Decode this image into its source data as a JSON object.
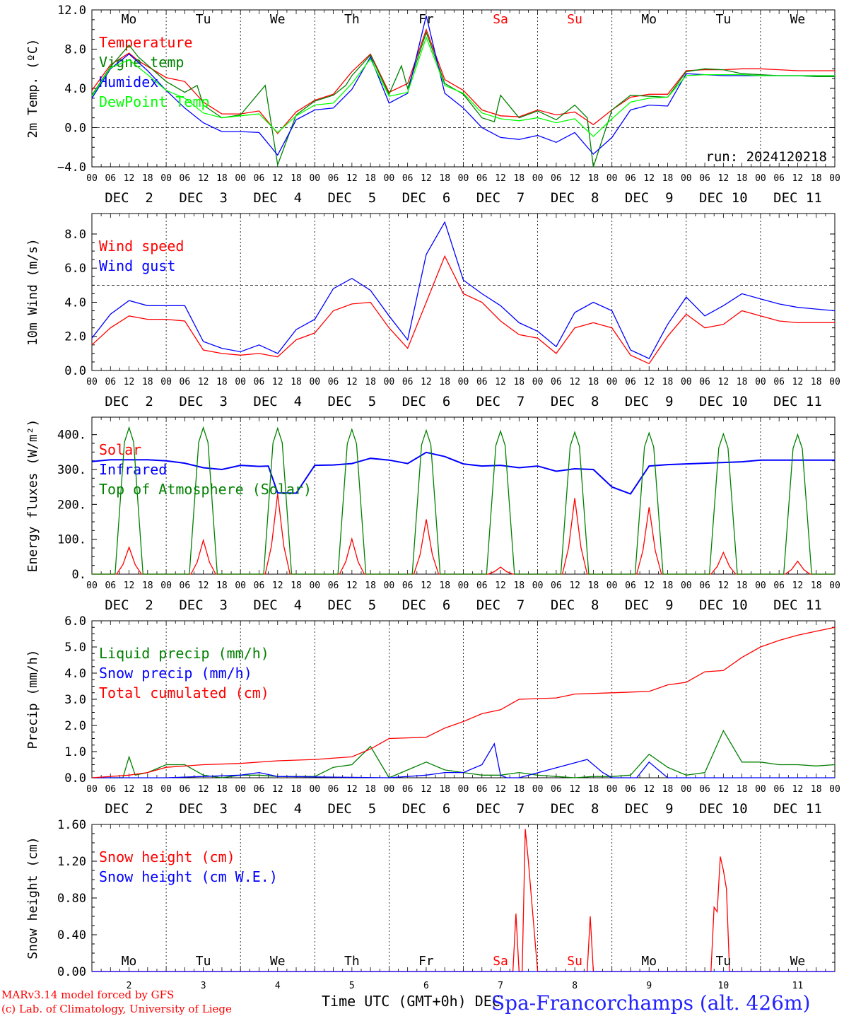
{
  "title": {
    "location": "Spa-Francorchamps (alt. 426m)",
    "credit_line1": "MARv3.14 model forced by GFS",
    "credit_line2": "(c) Lab. of Climatology, University of Liege",
    "xaxis_label": "Time UTC (GMT+0h) DEC",
    "run_label": "run: 2024120218"
  },
  "axis_common": {
    "hour_ticks": [
      "00",
      "06",
      "12",
      "18"
    ],
    "date_labels": [
      "DEC  2",
      "DEC  3",
      "DEC  4",
      "DEC  5",
      "DEC  6",
      "DEC  7",
      "DEC  8",
      "DEC  9",
      "DEC 10",
      "DEC 11"
    ],
    "day_numbers": [
      "2",
      "3",
      "4",
      "5",
      "6",
      "7",
      "8",
      "9",
      "10",
      "11"
    ],
    "weekdays": [
      "Mo",
      "Tu",
      "We",
      "Th",
      "Fr",
      "Sa",
      "Su",
      "Mo",
      "Tu",
      "We"
    ],
    "weekend_color": "#ff0000",
    "weekday_color": "#000000"
  },
  "chart_data": [
    {
      "id": "temp",
      "type": "line",
      "ylabel": "2m Temp. (ºC)",
      "ylim": [
        -4,
        12
      ],
      "yticks": [
        "-4.0",
        "0.0",
        "4.0",
        "8.0",
        "12.0"
      ],
      "ref_line": 0,
      "x_unit": "hours since DEC 2 00 UTC",
      "series": [
        {
          "name": "Temperature",
          "color": "#ff0000",
          "x": [
            0,
            6,
            12,
            15,
            24,
            30,
            36,
            42,
            48,
            54,
            60,
            66,
            72,
            78,
            84,
            90,
            96,
            102,
            108,
            114,
            120,
            126,
            132,
            138,
            144,
            150,
            156,
            162,
            168,
            174,
            180,
            186,
            192,
            198,
            204,
            210,
            216,
            222,
            228,
            234,
            240
          ],
          "y": [
            3.8,
            6.4,
            7.6,
            6.8,
            5.1,
            4.7,
            2.6,
            1.4,
            1.4,
            1.7,
            -0.6,
            1.6,
            2.8,
            3.4,
            5.7,
            7.5,
            3.6,
            4.5,
            10.0,
            4.9,
            3.8,
            1.8,
            1.2,
            1.1,
            1.8,
            1.3,
            1.6,
            0.3,
            1.8,
            3.1,
            3.4,
            3.4,
            5.8,
            5.9,
            5.9,
            6.0,
            6.0,
            5.9,
            5.8,
            5.8,
            5.8
          ]
        },
        {
          "name": "Vigne temp",
          "color": "#008000",
          "x": [
            0,
            6,
            12,
            15,
            24,
            30,
            34,
            36,
            42,
            48,
            56,
            60,
            66,
            72,
            78,
            82,
            84,
            90,
            96,
            100,
            102,
            108,
            114,
            120,
            126,
            130,
            132,
            138,
            144,
            150,
            156,
            160,
            162,
            168,
            174,
            180,
            186,
            192,
            198,
            204,
            210,
            216,
            222,
            228,
            234,
            240
          ],
          "y": [
            3.3,
            6.2,
            8.4,
            7.2,
            4.7,
            3.6,
            4.3,
            2.3,
            1.0,
            1.3,
            4.3,
            -3.8,
            1.3,
            2.7,
            3.3,
            4.3,
            5.3,
            7.4,
            3.4,
            6.3,
            4.0,
            9.7,
            4.5,
            3.4,
            1.0,
            0.6,
            3.3,
            1.0,
            1.7,
            0.8,
            2.3,
            1.0,
            -4.0,
            1.8,
            3.3,
            3.2,
            3.1,
            5.7,
            6.0,
            5.9,
            5.5,
            5.4,
            5.3,
            5.3,
            5.2,
            5.2
          ]
        },
        {
          "name": "Humidex",
          "color": "#0000ff",
          "x": [
            0,
            6,
            12,
            18,
            24,
            30,
            36,
            42,
            48,
            54,
            60,
            66,
            72,
            78,
            84,
            90,
            96,
            102,
            108,
            114,
            120,
            126,
            132,
            138,
            144,
            150,
            156,
            162,
            168,
            174,
            180,
            186,
            192,
            198,
            204,
            210,
            216,
            222,
            228,
            234,
            240
          ],
          "y": [
            3.0,
            6.0,
            7.5,
            5.8,
            3.8,
            2.0,
            0.5,
            -0.4,
            -0.4,
            -0.5,
            -2.8,
            0.8,
            1.8,
            2.0,
            3.9,
            7.2,
            2.5,
            3.5,
            11.4,
            3.5,
            2.0,
            0.0,
            -1.0,
            -1.2,
            -0.8,
            -1.5,
            -0.5,
            -2.7,
            -1.0,
            1.8,
            2.3,
            2.2,
            5.5,
            5.4,
            5.3,
            5.3,
            5.3,
            5.3,
            5.3,
            5.3,
            5.3
          ]
        },
        {
          "name": "DewPoint Temp",
          "color": "#00ff00",
          "x": [
            0,
            6,
            12,
            18,
            24,
            30,
            36,
            42,
            48,
            54,
            60,
            66,
            72,
            78,
            84,
            90,
            96,
            102,
            108,
            114,
            120,
            126,
            132,
            138,
            144,
            150,
            156,
            162,
            168,
            174,
            180,
            186,
            192,
            198,
            204,
            210,
            216,
            222,
            228,
            234,
            240
          ],
          "y": [
            3.2,
            6.1,
            6.9,
            5.4,
            3.8,
            3.0,
            1.5,
            1.0,
            1.2,
            1.4,
            -0.5,
            1.2,
            2.3,
            2.5,
            4.5,
            7.0,
            3.2,
            3.6,
            9.2,
            4.3,
            3.5,
            1.5,
            0.9,
            0.7,
            1.0,
            0.5,
            0.9,
            -0.9,
            0.9,
            2.6,
            3.0,
            3.1,
            5.3,
            5.4,
            5.4,
            5.4,
            5.3,
            5.3,
            5.3,
            5.3,
            5.3
          ]
        }
      ]
    },
    {
      "id": "wind",
      "type": "line",
      "ylabel": "10m Wind (m/s)",
      "ylim": [
        0,
        9.2
      ],
      "yticks": [
        "0.0",
        "2.0",
        "4.0",
        "6.0",
        "8.0"
      ],
      "ref_line": 5,
      "series": [
        {
          "name": "Wind speed",
          "color": "#ff0000",
          "x": [
            0,
            6,
            12,
            18,
            24,
            30,
            36,
            42,
            48,
            54,
            60,
            66,
            72,
            78,
            84,
            90,
            96,
            102,
            108,
            114,
            120,
            126,
            132,
            138,
            144,
            150,
            156,
            162,
            168,
            174,
            180,
            186,
            192,
            198,
            204,
            210,
            216,
            222,
            228,
            234,
            240
          ],
          "y": [
            1.5,
            2.5,
            3.2,
            3.0,
            3.0,
            2.9,
            1.2,
            1.0,
            0.9,
            1.0,
            0.8,
            1.8,
            2.2,
            3.5,
            3.9,
            4.0,
            2.5,
            1.3,
            4.0,
            6.7,
            4.5,
            4.0,
            2.9,
            2.1,
            1.9,
            1.0,
            2.5,
            2.8,
            2.5,
            0.9,
            0.4,
            2.0,
            3.3,
            2.5,
            2.7,
            3.5,
            3.2,
            2.9,
            2.8,
            2.8,
            2.8
          ]
        },
        {
          "name": "Wind gust",
          "color": "#0000ff",
          "x": [
            0,
            6,
            12,
            18,
            24,
            30,
            36,
            42,
            48,
            54,
            60,
            66,
            72,
            78,
            84,
            90,
            96,
            102,
            108,
            114,
            120,
            126,
            132,
            138,
            144,
            150,
            156,
            162,
            168,
            174,
            180,
            186,
            192,
            198,
            204,
            210,
            216,
            222,
            228,
            234,
            240
          ],
          "y": [
            1.9,
            3.3,
            4.1,
            3.8,
            3.8,
            3.8,
            1.7,
            1.3,
            1.1,
            1.5,
            1.0,
            2.4,
            3.0,
            4.8,
            5.4,
            4.7,
            3.2,
            1.8,
            6.8,
            8.7,
            5.3,
            4.5,
            3.8,
            2.8,
            2.3,
            1.4,
            3.4,
            4.0,
            3.5,
            1.2,
            0.7,
            2.7,
            4.3,
            3.2,
            3.8,
            4.5,
            4.2,
            3.9,
            3.7,
            3.6,
            3.5
          ]
        }
      ]
    },
    {
      "id": "flux",
      "type": "line",
      "ylabel": "Energy fluxes (W/m²)",
      "ylim": [
        0,
        450
      ],
      "yticks": [
        "0.",
        "100.",
        "200.",
        "300.",
        "400."
      ],
      "series": [
        {
          "name": "Solar",
          "color": "#ff0000",
          "daily_noon_peaks": [
            77,
            97,
            230,
            101,
            157,
            20,
            218,
            192,
            62,
            37
          ]
        },
        {
          "name": "Infrared",
          "color": "#0000ff",
          "x": [
            0,
            6,
            12,
            18,
            24,
            30,
            36,
            42,
            48,
            54,
            57,
            60,
            66,
            72,
            78,
            84,
            90,
            96,
            102,
            108,
            114,
            120,
            126,
            132,
            138,
            144,
            150,
            156,
            162,
            168,
            174,
            180,
            186,
            192,
            198,
            204,
            210,
            216,
            222,
            228,
            234,
            240
          ],
          "y": [
            323,
            328,
            328,
            328,
            325,
            318,
            305,
            300,
            312,
            309,
            310,
            233,
            232,
            312,
            313,
            317,
            332,
            327,
            317,
            349,
            337,
            316,
            310,
            312,
            305,
            310,
            295,
            302,
            300,
            250,
            230,
            310,
            314,
            316,
            318,
            320,
            322,
            327,
            327,
            327,
            327,
            327
          ]
        },
        {
          "name": "Top of Atmosphere (Solar)",
          "color": "#008000",
          "daily_noon_peaks": [
            420,
            420,
            418,
            415,
            412,
            410,
            407,
            405,
            402,
            400
          ]
        }
      ]
    },
    {
      "id": "precip",
      "type": "line",
      "ylabel": "Precip (mm/h)",
      "ylim": [
        0,
        6
      ],
      "yticks": [
        "0.0",
        "1.0",
        "2.0",
        "3.0",
        "4.0",
        "5.0",
        "6.0"
      ],
      "series": [
        {
          "name": "Liquid precip (mm/h)",
          "color": "#008000",
          "x": [
            0,
            10,
            12,
            14,
            18,
            24,
            30,
            36,
            42,
            48,
            54,
            60,
            66,
            72,
            78,
            84,
            90,
            96,
            102,
            108,
            114,
            120,
            126,
            132,
            138,
            144,
            150,
            156,
            162,
            168,
            174,
            180,
            186,
            192,
            198,
            204,
            210,
            216,
            222,
            228,
            234,
            240
          ],
          "y": [
            0,
            0,
            0.8,
            0.1,
            0.2,
            0.5,
            0.5,
            0.1,
            0,
            0.1,
            0.1,
            0.05,
            0.05,
            0.05,
            0.4,
            0.5,
            1.2,
            0,
            0.3,
            0.6,
            0.3,
            0.2,
            0.1,
            0.1,
            0.2,
            0.1,
            0.05,
            0,
            0.05,
            0.05,
            0.1,
            0.9,
            0.4,
            0.1,
            0.2,
            1.8,
            0.6,
            0.6,
            0.5,
            0.5,
            0.45,
            0.5
          ]
        },
        {
          "name": "Snow precip (mm/h)",
          "color": "#0000ff",
          "x": [
            0,
            24,
            48,
            54,
            60,
            96,
            108,
            114,
            120,
            126,
            130,
            132,
            134,
            138,
            160,
            165,
            168,
            176,
            180,
            186,
            240
          ],
          "y": [
            0,
            0,
            0.1,
            0.2,
            0.05,
            0,
            0.1,
            0.2,
            0.2,
            0.5,
            1.3,
            0.1,
            0,
            0,
            0.7,
            0.2,
            0,
            0,
            0.6,
            0,
            0
          ]
        },
        {
          "name": "Total cumulated (cm)",
          "color": "#ff0000",
          "x": [
            0,
            12,
            18,
            24,
            36,
            48,
            60,
            72,
            84,
            90,
            96,
            108,
            114,
            120,
            126,
            132,
            138,
            150,
            156,
            168,
            180,
            186,
            192,
            198,
            204,
            210,
            216,
            222,
            228,
            234,
            240
          ],
          "y": [
            0,
            0.1,
            0.2,
            0.4,
            0.5,
            0.55,
            0.65,
            0.7,
            0.8,
            1.1,
            1.5,
            1.55,
            1.9,
            2.15,
            2.45,
            2.6,
            3.0,
            3.05,
            3.2,
            3.25,
            3.3,
            3.55,
            3.65,
            4.05,
            4.1,
            4.6,
            5.0,
            5.25,
            5.45,
            5.6,
            5.75
          ]
        }
      ]
    },
    {
      "id": "snow",
      "type": "line",
      "ylabel": "Snow height (cm)",
      "ylim": [
        0,
        1.6
      ],
      "yticks": [
        "0.00",
        "0.40",
        "0.80",
        "1.20",
        "1.60"
      ],
      "series": [
        {
          "name": "Snow height (cm)",
          "color": "#ff0000",
          "x": [
            0,
            136,
            137,
            138,
            139,
            140,
            141,
            142,
            144,
            145,
            160,
            161,
            162,
            163,
            200,
            201,
            202,
            203,
            204,
            205,
            206,
            240
          ],
          "y": [
            0,
            0,
            0.63,
            0,
            0,
            1.55,
            1.2,
            0.8,
            0,
            0,
            0,
            0.6,
            0,
            0,
            0,
            0.7,
            0.65,
            1.25,
            1.1,
            0.9,
            0,
            0
          ]
        },
        {
          "name": "Snow height (cm W.E.)",
          "color": "#0000ff",
          "x": [
            0,
            240
          ],
          "y": [
            0,
            0
          ]
        }
      ]
    }
  ]
}
